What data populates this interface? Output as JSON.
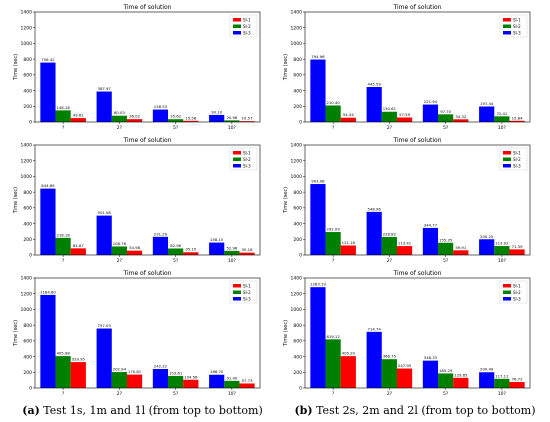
{
  "captions": {
    "a_tag": "(a)",
    "a_text": "Test 1s, 1m and 1l (from top to bottom)",
    "b_tag": "(b)",
    "b_text": "Test 2s, 2m and 2l (from top to bottom)"
  },
  "colors": {
    "series1": "#ff0000",
    "series2": "#008000",
    "series3": "#0000ff"
  },
  "chart_data": [
    {
      "type": "bar",
      "title": "Time of solution",
      "ylabel": "Time (sec)",
      "categories": [
        "?",
        "2?",
        "5?",
        "10?"
      ],
      "ylim": [
        0,
        1400
      ],
      "yticks": [
        0,
        200,
        400,
        600,
        800,
        1000,
        1200,
        1400
      ],
      "legend": "top-right",
      "series": [
        {
          "name": "SI-1",
          "values": [
            49.61,
            36.02,
            15.58,
            10.57
          ],
          "labels": [
            "49.61",
            "36.02",
            "15.58",
            "10.57"
          ]
        },
        {
          "name": "SI-2",
          "values": [
            148.18,
            80.03,
            35.62,
            20.98
          ],
          "labels": [
            "148.18",
            "80.03",
            "35.62",
            "20.98"
          ]
        },
        {
          "name": "SI-3",
          "values": [
            756.42,
            387.97,
            158.53,
            90.1
          ],
          "labels": [
            "756.42",
            "387.97",
            "158.53",
            "90.10"
          ]
        }
      ]
    },
    {
      "type": "bar",
      "title": "Time of solution",
      "ylabel": "Time (sec)",
      "categories": [
        "?",
        "2?",
        "5?",
        "10?"
      ],
      "ylim": [
        0,
        1400
      ],
      "yticks": [
        0,
        200,
        400,
        600,
        800,
        1000,
        1200,
        1400
      ],
      "legend": "top-right",
      "series": [
        {
          "name": "SI-1",
          "values": [
            54.44,
            57.59,
            34.32,
            15.84
          ],
          "labels": [
            "54.44",
            "57.59",
            "34.32",
            "15.84"
          ]
        },
        {
          "name": "SI-2",
          "values": [
            210.4,
            130.61,
            97.7,
            72.41
          ],
          "labels": [
            "210.40",
            "130.61",
            "97.70",
            "72.41"
          ]
        },
        {
          "name": "SI-3",
          "values": [
            794.96,
            445.59,
            221.94,
            197.44
          ],
          "labels": [
            "794.96",
            "445.59",
            "221.94",
            "197.44"
          ]
        }
      ]
    },
    {
      "type": "bar",
      "title": "Time of solution",
      "ylabel": "Time (sec)",
      "categories": [
        "?",
        "2?",
        "5?",
        "10?"
      ],
      "ylim": [
        0,
        1400
      ],
      "yticks": [
        0,
        200,
        400,
        600,
        800,
        1000,
        1200,
        1400
      ],
      "legend": "top-right",
      "series": [
        {
          "name": "SI-1",
          "values": [
            84.67,
            54.98,
            35.15,
            30.18
          ],
          "labels": [
            "84.67",
            "54.98",
            "35.15",
            "30.18"
          ]
        },
        {
          "name": "SI-2",
          "values": [
            218.18,
            108.76,
            82.98,
            52.96
          ],
          "labels": [
            "218.18",
            "108.76",
            "82.98",
            "52.96"
          ]
        },
        {
          "name": "SI-3",
          "values": [
            844.89,
            501.58,
            231.29,
            158.15
          ],
          "labels": [
            "844.89",
            "501.58",
            "231.29",
            "158.15"
          ]
        }
      ]
    },
    {
      "type": "bar",
      "title": "Time of solution",
      "ylabel": "Time (sec)",
      "categories": [
        "?",
        "2?",
        "5?",
        "10?"
      ],
      "ylim": [
        0,
        1400
      ],
      "yticks": [
        0,
        200,
        400,
        600,
        800,
        1000,
        1200,
        1400
      ],
      "legend": "top-right",
      "series": [
        {
          "name": "SI-1",
          "values": [
            121.18,
            113.41,
            59.91,
            71.39
          ],
          "labels": [
            "121.18",
            "113.41",
            "59.91",
            "71.39"
          ]
        },
        {
          "name": "SI-2",
          "values": [
            292.09,
            228.82,
            155.35,
            113.92
          ],
          "labels": [
            "292.09",
            "228.82",
            "155.35",
            "113.92"
          ]
        },
        {
          "name": "SI-3",
          "values": [
            903.08,
            548.96,
            344.77,
            200.25
          ],
          "labels": [
            "903.08",
            "548.96",
            "344.77",
            "200.25"
          ]
        }
      ]
    },
    {
      "type": "bar",
      "title": "Time of solution",
      "ylabel": "Time (sec)",
      "categories": [
        "?",
        "2?",
        "5?",
        "10?"
      ],
      "ylim": [
        0,
        1400
      ],
      "yticks": [
        0,
        200,
        400,
        600,
        800,
        1000,
        1200,
        1400
      ],
      "legend": "top-right",
      "series": [
        {
          "name": "SI-1",
          "values": [
            329.95,
            170.81,
            104.58,
            57.73
          ],
          "labels": [
            "329.95",
            "170.81",
            "104.58",
            "57.73"
          ]
        },
        {
          "name": "SI-2",
          "values": [
            405.98,
            202.94,
            153.61,
            91.4
          ],
          "labels": [
            "405.98",
            "202.94",
            "153.61",
            "91.40"
          ]
        },
        {
          "name": "SI-3",
          "values": [
            1184.8,
            757.03,
            242.22,
            168.7
          ],
          "labels": [
            "1184.80",
            "757.03",
            "242.22",
            "168.70"
          ]
        }
      ]
    },
    {
      "type": "bar",
      "title": "Time of solution",
      "ylabel": "Time (sec)",
      "categories": [
        "?",
        "2?",
        "5?",
        "10?"
      ],
      "ylim": [
        0,
        1400
      ],
      "yticks": [
        0,
        200,
        400,
        600,
        800,
        1000,
        1200,
        1400
      ],
      "legend": "top-right",
      "series": [
        {
          "name": "SI-1",
          "values": [
            405.2,
            247.95,
            129.65,
            76.72
          ],
          "labels": [
            "405.20",
            "247.95",
            "129.65",
            "76.72"
          ]
        },
        {
          "name": "SI-2",
          "values": [
            619.12,
            366.75,
            185.29,
            117.11
          ],
          "labels": [
            "619.12",
            "366.75",
            "185.29",
            "117.11"
          ]
        },
        {
          "name": "SI-3",
          "values": [
            1283.19,
            714.74,
            348.33,
            200.49
          ],
          "labels": [
            "1283.19",
            "714.74",
            "348.33",
            "200.49"
          ]
        }
      ]
    }
  ]
}
